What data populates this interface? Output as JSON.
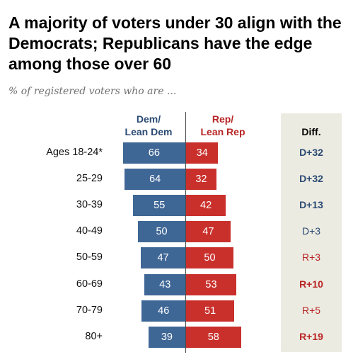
{
  "title": "A majority of voters under 30 align with the Democrats; Republicans have the edge among those over 60",
  "subtitle": "% of registered voters who are ...",
  "headers": {
    "dem": [
      "Dem/",
      "Lean Dem"
    ],
    "rep": [
      "Rep/",
      "Lean Rep"
    ],
    "diff": "Diff."
  },
  "colors": {
    "dem": "#3f6796",
    "rep": "#c9302c",
    "dem_text": "#2a4a74",
    "rep_text": "#b82525",
    "diff_panel": "#ecebe1"
  },
  "chart_data": {
    "type": "bar",
    "orientation": "diverging-horizontal",
    "categories": [
      "Ages 18-24*",
      "25-29",
      "30-39",
      "40-49",
      "50-59",
      "60-69",
      "70-79",
      "80+"
    ],
    "series": [
      {
        "name": "Dem/ Lean Dem",
        "values": [
          66,
          64,
          55,
          50,
          47,
          43,
          46,
          39
        ]
      },
      {
        "name": "Rep/ Lean Rep",
        "values": [
          34,
          32,
          42,
          47,
          50,
          53,
          51,
          58
        ]
      }
    ],
    "diff": [
      {
        "text": "D+32",
        "party": "dem",
        "bold": true
      },
      {
        "text": "D+32",
        "party": "dem",
        "bold": true
      },
      {
        "text": "D+13",
        "party": "dem",
        "bold": true
      },
      {
        "text": "D+3",
        "party": "dem",
        "bold": false
      },
      {
        "text": "R+3",
        "party": "rep",
        "bold": false
      },
      {
        "text": "R+10",
        "party": "rep",
        "bold": true
      },
      {
        "text": "R+5",
        "party": "rep",
        "bold": false
      },
      {
        "text": "R+19",
        "party": "rep",
        "bold": true
      }
    ]
  }
}
